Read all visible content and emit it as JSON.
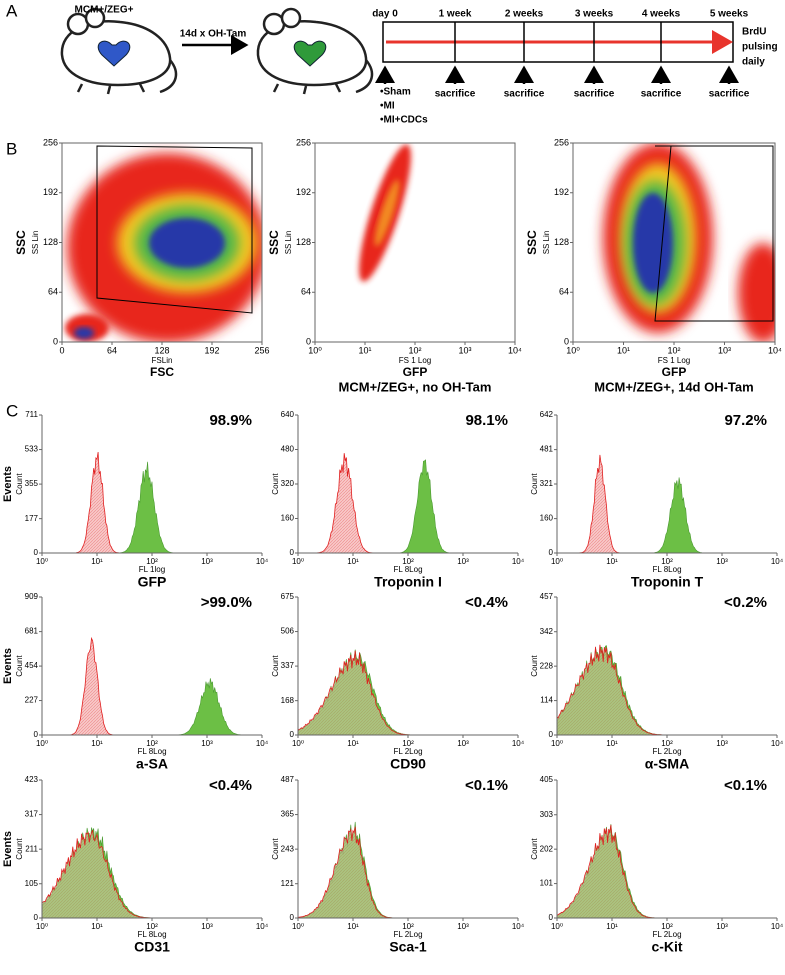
{
  "panel_labels": [
    "A",
    "B",
    "C"
  ],
  "timeline": {
    "mouse_label": "MCM+/ZEG+",
    "treatment": "14d x OH-Tam",
    "times": [
      "day 0",
      "1 week",
      "2 weeks",
      "3 weeks",
      "4 weeks",
      "5 weeks"
    ],
    "pulse_label": [
      "BrdU",
      "pulsing",
      "daily"
    ],
    "groups": [
      "•Sham",
      "•MI",
      "•MI+CDCs"
    ],
    "events": [
      "sacrifice",
      "sacrifice",
      "sacrifice",
      "sacrifice",
      "sacrifice"
    ]
  },
  "scatter_plots": [
    {
      "ylabel": "SSC",
      "yunit": "SS Lin",
      "xunit": "FSLin",
      "xlabel": "FSC",
      "xlog": false,
      "xlim": [
        0,
        256
      ],
      "xticks": [
        0,
        64,
        128,
        192,
        256
      ],
      "ylim": [
        0,
        256
      ],
      "yticks": [
        0,
        64,
        128,
        192,
        256
      ]
    },
    {
      "ylabel": "SSC",
      "yunit": "SS Lin",
      "xunit": "FS 1 Log",
      "xlabel": "GFP",
      "caption": "MCM+/ZEG+, no OH-Tam",
      "xlog": true,
      "xlim": [
        1,
        10000
      ],
      "xticks": [
        {
          "value": 1,
          "label": "10⁰"
        },
        {
          "value": 10,
          "label": "10¹"
        },
        {
          "value": 100,
          "label": "10²"
        },
        {
          "value": 1000,
          "label": "10³"
        },
        {
          "value": 10000,
          "label": "10⁴"
        }
      ],
      "ylim": [
        0,
        256
      ],
      "yticks": [
        0,
        64,
        128,
        192,
        256
      ]
    },
    {
      "ylabel": "SSC",
      "yunit": "SS Lin",
      "xunit": "FS 1 Log",
      "xlabel": "GFP",
      "caption": "MCM+/ZEG+, 14d OH-Tam",
      "xlog": true,
      "xlim": [
        1,
        10000
      ],
      "xticks": [
        {
          "value": 1,
          "label": "10⁰"
        },
        {
          "value": 10,
          "label": "10¹"
        },
        {
          "value": 100,
          "label": "10²"
        },
        {
          "value": 1000,
          "label": "10³"
        },
        {
          "value": 10000,
          "label": "10⁴"
        }
      ],
      "ylim": [
        0,
        256
      ],
      "yticks": [
        0,
        64,
        128,
        192,
        256
      ]
    }
  ],
  "histograms": [
    {
      "marker": "GFP",
      "percent": "98.9%",
      "ylabel": "Events",
      "yunit": "Count",
      "xunit": "FL 1log",
      "ylim": [
        0,
        711
      ],
      "yticks": [
        0,
        177,
        355,
        533,
        711
      ],
      "xlim": [
        1,
        10000
      ],
      "xticks": [
        {
          "value": 1,
          "label": "10⁰"
        },
        {
          "value": 10,
          "label": "10¹"
        },
        {
          "value": 100,
          "label": "10²"
        },
        {
          "value": 1000,
          "label": "10³"
        },
        {
          "value": 10000,
          "label": "10⁴"
        }
      ]
    },
    {
      "marker": "Troponin I",
      "percent": "98.1%",
      "yunit": "Count",
      "xunit": "FL 8Log",
      "ylim": [
        0,
        640
      ],
      "yticks": [
        0,
        160,
        320,
        480,
        640
      ],
      "xlim": [
        1,
        10000
      ],
      "xticks": [
        {
          "value": 1,
          "label": "10⁰"
        },
        {
          "value": 10,
          "label": "10¹"
        },
        {
          "value": 100,
          "label": "10²"
        },
        {
          "value": 1000,
          "label": "10³"
        },
        {
          "value": 10000,
          "label": "10⁴"
        }
      ]
    },
    {
      "marker": "Troponin T",
      "percent": "97.2%",
      "yunit": "Count",
      "xunit": "FL 8Log",
      "ylim": [
        0,
        642
      ],
      "yticks": [
        0,
        160,
        321,
        481,
        642
      ],
      "xlim": [
        1,
        10000
      ],
      "xticks": [
        {
          "value": 1,
          "label": "10⁰"
        },
        {
          "value": 10,
          "label": "10¹"
        },
        {
          "value": 100,
          "label": "10²"
        },
        {
          "value": 1000,
          "label": "10³"
        },
        {
          "value": 10000,
          "label": "10⁴"
        }
      ]
    },
    {
      "marker": "a-SA",
      "percent": ">99.0%",
      "ylabel": "Events",
      "yunit": "Count",
      "xunit": "FL 8Log",
      "ylim": [
        0,
        909
      ],
      "yticks": [
        0,
        227,
        454,
        681,
        909
      ],
      "xlim": [
        1,
        10000
      ],
      "xticks": [
        {
          "value": 1,
          "label": "10⁰"
        },
        {
          "value": 10,
          "label": "10¹"
        },
        {
          "value": 100,
          "label": "10²"
        },
        {
          "value": 1000,
          "label": "10³"
        },
        {
          "value": 10000,
          "label": "10⁴"
        }
      ]
    },
    {
      "marker": "CD90",
      "percent": "<0.4%",
      "yunit": "Count",
      "xunit": "FL 2Log",
      "ylim": [
        0,
        675
      ],
      "yticks": [
        0,
        168,
        337,
        506,
        675
      ],
      "xlim": [
        1,
        10000
      ],
      "xticks": [
        {
          "value": 1,
          "label": "10⁰"
        },
        {
          "value": 10,
          "label": "10¹"
        },
        {
          "value": 100,
          "label": "10²"
        },
        {
          "value": 1000,
          "label": "10³"
        },
        {
          "value": 10000,
          "label": "10⁴"
        }
      ]
    },
    {
      "marker": "α-SMA",
      "percent": "<0.2%",
      "yunit": "Count",
      "xunit": "FL 2Log",
      "ylim": [
        0,
        457
      ],
      "yticks": [
        0,
        114,
        228,
        342,
        457
      ],
      "xlim": [
        1,
        10000
      ],
      "xticks": [
        {
          "value": 1,
          "label": "10⁰"
        },
        {
          "value": 10,
          "label": "10¹"
        },
        {
          "value": 100,
          "label": "10²"
        },
        {
          "value": 1000,
          "label": "10³"
        },
        {
          "value": 10000,
          "label": "10⁴"
        }
      ]
    },
    {
      "marker": "CD31",
      "percent": "<0.4%",
      "ylabel": "Events",
      "yunit": "Count",
      "xunit": "FL 8Log",
      "ylim": [
        0,
        423
      ],
      "yticks": [
        0,
        105,
        211,
        317,
        423
      ],
      "xlim": [
        1,
        10000
      ],
      "xticks": [
        {
          "value": 1,
          "label": "10⁰"
        },
        {
          "value": 10,
          "label": "10¹"
        },
        {
          "value": 100,
          "label": "10²"
        },
        {
          "value": 1000,
          "label": "10³"
        },
        {
          "value": 10000,
          "label": "10⁴"
        }
      ]
    },
    {
      "marker": "Sca-1",
      "percent": "<0.1%",
      "yunit": "Count",
      "xunit": "FL 2Log",
      "ylim": [
        0,
        487
      ],
      "yticks": [
        0,
        121,
        243,
        365,
        487
      ],
      "xlim": [
        1,
        10000
      ],
      "xticks": [
        {
          "value": 1,
          "label": "10⁰"
        },
        {
          "value": 10,
          "label": "10¹"
        },
        {
          "value": 100,
          "label": "10²"
        },
        {
          "value": 1000,
          "label": "10³"
        },
        {
          "value": 10000,
          "label": "10⁴"
        }
      ]
    },
    {
      "marker": "c-Kit",
      "percent": "<0.1%",
      "yunit": "Count",
      "xunit": "FL 2Log",
      "ylim": [
        0,
        405
      ],
      "yticks": [
        0,
        101,
        202,
        303,
        405
      ],
      "xlim": [
        1,
        10000
      ],
      "xticks": [
        {
          "value": 1,
          "label": "10⁰"
        },
        {
          "value": 10,
          "label": "10¹"
        },
        {
          "value": 100,
          "label": "10²"
        },
        {
          "value": 1000,
          "label": "10³"
        },
        {
          "value": 10000,
          "label": "10⁴"
        }
      ]
    }
  ]
}
